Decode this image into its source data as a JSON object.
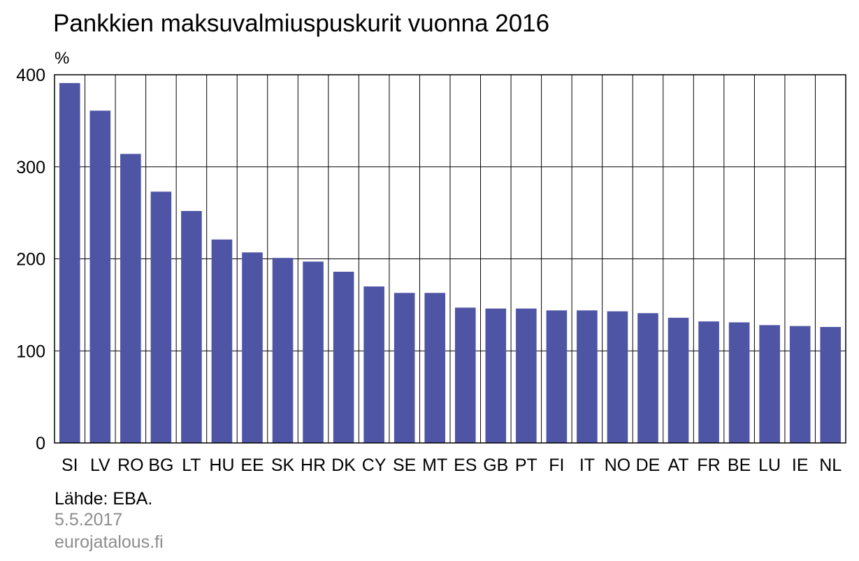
{
  "chart_data": {
    "type": "bar",
    "title": "Pankkien maksuvalmiuspuskurit vuonna 2016",
    "ylabel": "%",
    "xlabel": "",
    "ylim": [
      0,
      400
    ],
    "yticks": [
      0,
      100,
      200,
      300,
      400
    ],
    "grid": true,
    "bar_color": "#4f55a5",
    "categories": [
      "SI",
      "LV",
      "RO",
      "BG",
      "LT",
      "HU",
      "EE",
      "SK",
      "HR",
      "DK",
      "CY",
      "SE",
      "MT",
      "ES",
      "GB",
      "PT",
      "FI",
      "IT",
      "NO",
      "DE",
      "AT",
      "FR",
      "BE",
      "LU",
      "IE",
      "NL"
    ],
    "values": [
      391,
      361,
      314,
      273,
      252,
      221,
      207,
      201,
      197,
      186,
      170,
      163,
      163,
      147,
      146,
      146,
      144,
      144,
      143,
      141,
      136,
      132,
      131,
      128,
      127,
      126
    ]
  },
  "footer": {
    "source": "Lähde: EBA.",
    "date": "5.5.2017",
    "site": "eurojatalous.fi"
  }
}
